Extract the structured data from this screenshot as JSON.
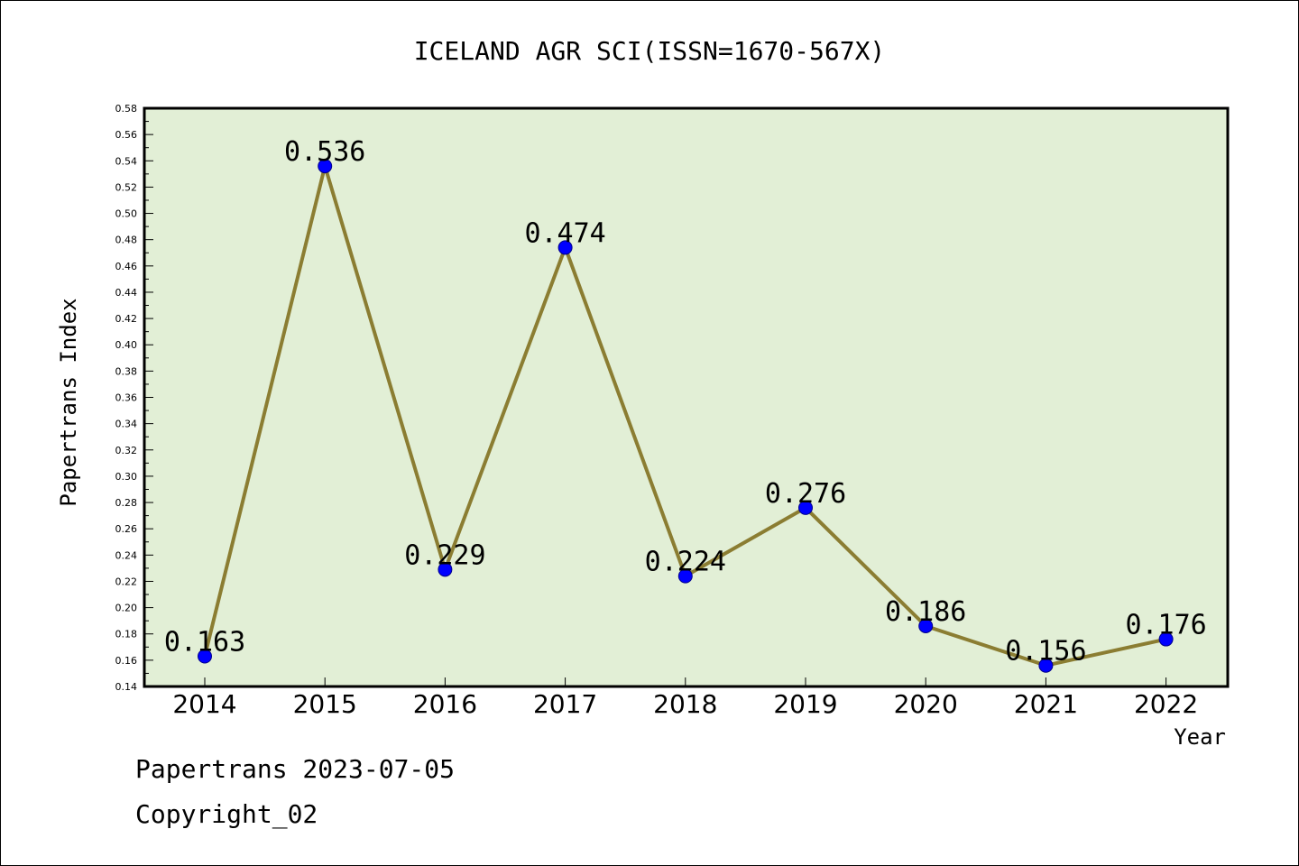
{
  "chart_data": {
    "type": "line",
    "title": "ICELAND AGR SCI(ISSN=1670-567X)",
    "xlabel": "Year",
    "ylabel": "Papertrans Index",
    "categories": [
      "2014",
      "2015",
      "2016",
      "2017",
      "2018",
      "2019",
      "2020",
      "2021",
      "2022"
    ],
    "values": [
      0.163,
      0.536,
      0.229,
      0.474,
      0.224,
      0.276,
      0.186,
      0.156,
      0.176
    ],
    "data_labels": [
      "0.163",
      "0.536",
      "0.229",
      "0.474",
      "0.224",
      "0.276",
      "0.186",
      "0.156",
      "0.176"
    ],
    "ylim": [
      0.14,
      0.58
    ],
    "ytick_labels": [
      "0.14",
      "0.16",
      "0.18",
      "0.20",
      "0.22",
      "0.24",
      "0.26",
      "0.28",
      "0.30",
      "0.32",
      "0.34",
      "0.36",
      "0.38",
      "0.40",
      "0.42",
      "0.44",
      "0.46",
      "0.48",
      "0.50",
      "0.52",
      "0.54",
      "0.56",
      "0.58"
    ],
    "grid": false,
    "colors": {
      "plot_background": "#e2efd6",
      "line": "#8b7d32",
      "marker": "#0000ff"
    }
  },
  "footer": {
    "line1": "Papertrans 2023-07-05",
    "line2": "Copyright_02"
  }
}
